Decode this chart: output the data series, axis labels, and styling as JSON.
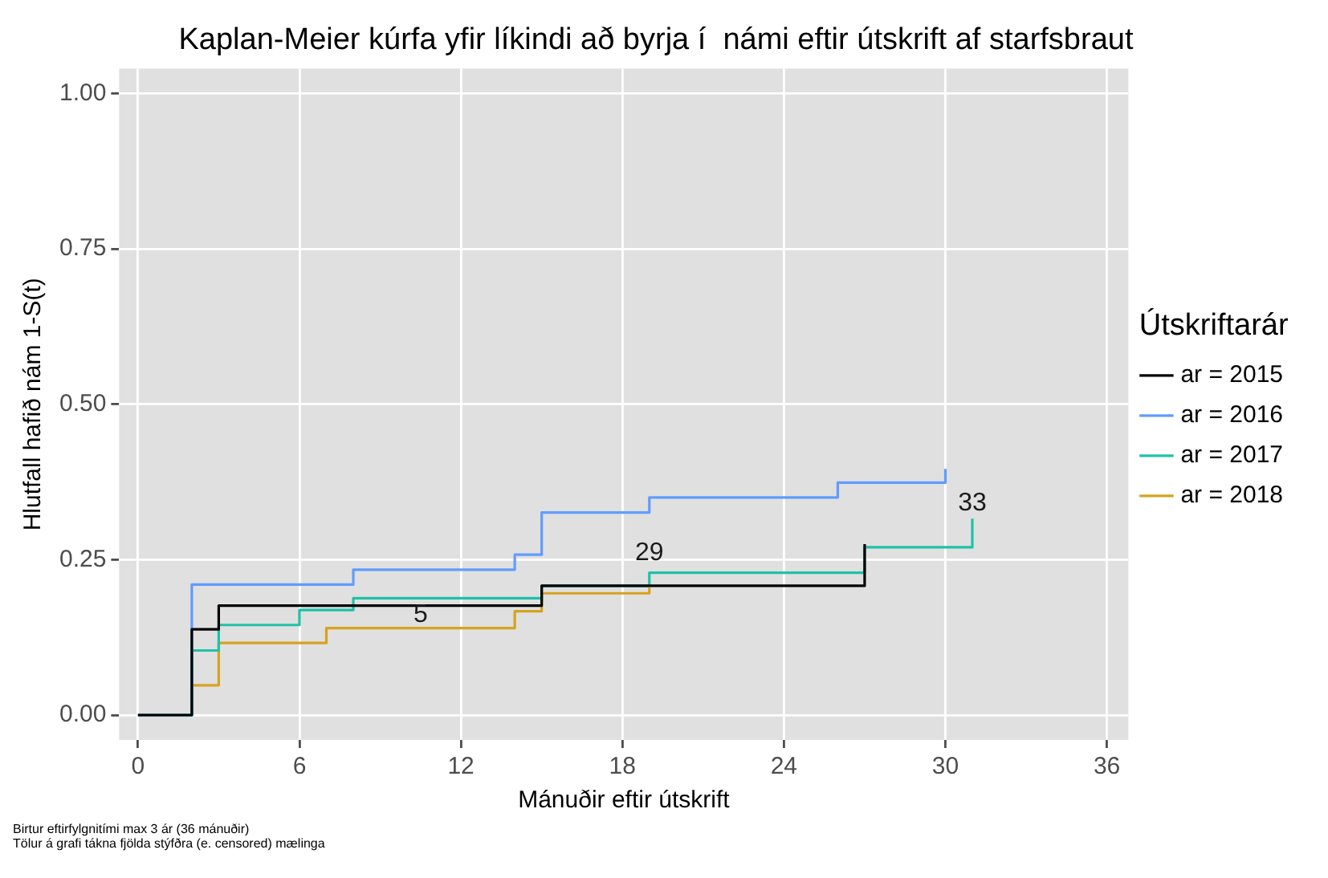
{
  "chart_data": {
    "type": "step",
    "title": "Kaplan-Meier kúrfa yfir líkindi að byrja í  námi eftir útskrift af starfsbraut",
    "xlabel": "Mánuðir eftir útskrift",
    "ylabel": "Hlutfall hafið nám 1-S(t)",
    "legend_title": "Útskriftarár",
    "legend": "right",
    "grid": true,
    "marker": "none",
    "line_style": "solid",
    "xlim": [
      -0.7,
      36.8
    ],
    "xticks": [
      0,
      6,
      12,
      18,
      24,
      30,
      36
    ],
    "ylim": [
      -0.04,
      1.04
    ],
    "yticks": [
      {
        "value": 0,
        "label": "0.00"
      },
      {
        "value": 0.25,
        "label": "0.25"
      },
      {
        "value": 0.5,
        "label": "0.50"
      },
      {
        "value": 0.75,
        "label": "0.75"
      },
      {
        "value": 1,
        "label": "1.00"
      }
    ],
    "series": [
      {
        "name": "ar = 2015",
        "color": "#000000",
        "x": [
          0,
          2,
          3,
          15,
          27
        ],
        "values": [
          0,
          0.138,
          0.176,
          0.208,
          0.275
        ]
      },
      {
        "name": "ar = 2016",
        "color": "#619cff",
        "x": [
          0,
          2,
          8,
          14,
          15,
          19,
          26,
          30
        ],
        "values": [
          0,
          0.21,
          0.234,
          0.258,
          0.326,
          0.35,
          0.374,
          0.396
        ]
      },
      {
        "name": "ar = 2017",
        "color": "#1fc1a8",
        "x": [
          0,
          2,
          3,
          6,
          8,
          15,
          19,
          27,
          31
        ],
        "values": [
          0,
          0.104,
          0.145,
          0.169,
          0.188,
          0.208,
          0.229,
          0.27,
          0.316
        ]
      },
      {
        "name": "ar = 2018",
        "color": "#d6a21f",
        "x": [
          0,
          2,
          3,
          7,
          14,
          15,
          19
        ],
        "values": [
          0,
          0.048,
          0.116,
          0.14,
          0.167,
          0.196,
          0.205
        ]
      }
    ],
    "annotations": [
      {
        "text": "5",
        "x": 10.5,
        "y": 0.14
      },
      {
        "text": "29",
        "x": 19,
        "y": 0.24
      },
      {
        "text": "33",
        "x": 31,
        "y": 0.32
      },
      "Birtur eftirfylgnitími max 3 ár (36 mánuðir)",
      "Tölur á grafi tákna fjölda stýfðra (e. censored) mælinga"
    ]
  }
}
